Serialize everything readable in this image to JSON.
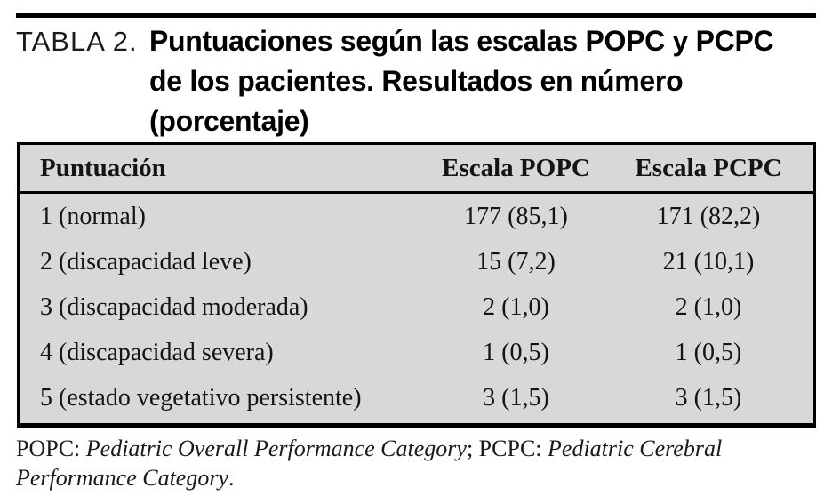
{
  "title": {
    "label": "TABLA 2.",
    "lines": [
      "Puntuaciones según las escalas POPC y PCPC",
      "de los pacientes. Resultados en número",
      "(porcentaje)"
    ]
  },
  "table": {
    "columns": {
      "score": "Puntuación",
      "popc": "Escala POPC",
      "pcpc": "Escala PCPC"
    },
    "rows": [
      {
        "score": "1 (normal)",
        "popc": "177 (85,1)",
        "pcpc": "171 (82,2)"
      },
      {
        "score": "2 (discapacidad leve)",
        "popc": "15 (7,2)",
        "pcpc": "21 (10,1)"
      },
      {
        "score": "3 (discapacidad moderada)",
        "popc": "2 (1,0)",
        "pcpc": "2 (1,0)"
      },
      {
        "score": "4 (discapacidad severa)",
        "popc": "1 (0,5)",
        "pcpc": "1 (0,5)"
      },
      {
        "score": "5 (estado vegetativo persistente)",
        "popc": "3 (1,5)",
        "pcpc": "3 (1,5)"
      }
    ]
  },
  "footnote": {
    "popc_abbr": "POPC: ",
    "popc_full": "Pediatric Overall Performance Category",
    "separator": "; PCPC: ",
    "pcpc_full": "Pediatric Cerebral Performance Category",
    "period": "."
  },
  "colors": {
    "table_background": "#d8d8d8",
    "rule": "#000000",
    "text": "#1a1a1a"
  }
}
